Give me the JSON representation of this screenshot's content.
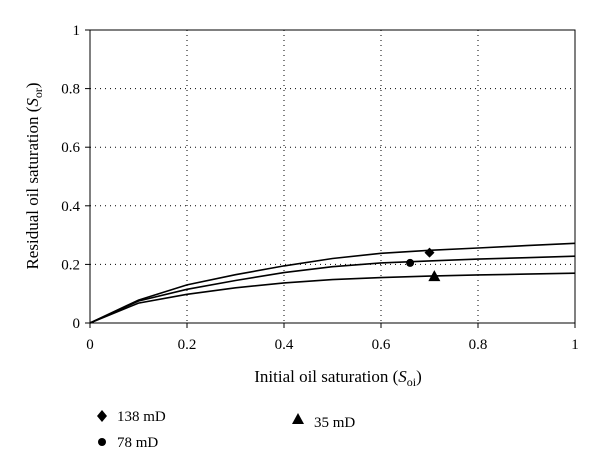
{
  "chart_data": {
    "type": "line",
    "xlabel": {
      "main": "Initial oil saturation (",
      "sym": "S",
      "sub": "oi",
      "end": ")"
    },
    "ylabel": {
      "main": "Residual oil saturation (",
      "sym": "S",
      "sub": "or",
      "end": ")"
    },
    "xlim": [
      0,
      1
    ],
    "ylim": [
      0,
      1
    ],
    "x_ticks": [
      "0",
      "0.2",
      "0.4",
      "0.6",
      "0.8",
      "1"
    ],
    "y_ticks": [
      "0",
      "0.2",
      "0.4",
      "0.6",
      "0.8",
      "1"
    ],
    "grid": "dotted",
    "x": [
      0,
      0.1,
      0.2,
      0.3,
      0.4,
      0.5,
      0.6,
      0.7,
      0.8,
      0.9,
      1.0
    ],
    "curves": [
      {
        "values": [
          0,
          0.078,
          0.13,
          0.165,
          0.195,
          0.22,
          0.238,
          0.248,
          0.256,
          0.264,
          0.272
        ]
      },
      {
        "values": [
          0,
          0.075,
          0.115,
          0.145,
          0.172,
          0.192,
          0.205,
          0.212,
          0.218,
          0.223,
          0.228
        ]
      },
      {
        "values": [
          0,
          0.068,
          0.098,
          0.12,
          0.137,
          0.148,
          0.155,
          0.16,
          0.164,
          0.167,
          0.17
        ]
      }
    ],
    "series": [
      {
        "name": "138 mD",
        "marker": "diamond",
        "x": 0.7,
        "y": 0.24
      },
      {
        "name": "78 mD",
        "marker": "circle",
        "x": 0.66,
        "y": 0.205
      },
      {
        "name": "35 mD",
        "marker": "triangle",
        "x": 0.71,
        "y": 0.16
      }
    ],
    "legend": "bottom-left",
    "colors": {
      "line": "#000000",
      "grid": "#000000"
    }
  }
}
